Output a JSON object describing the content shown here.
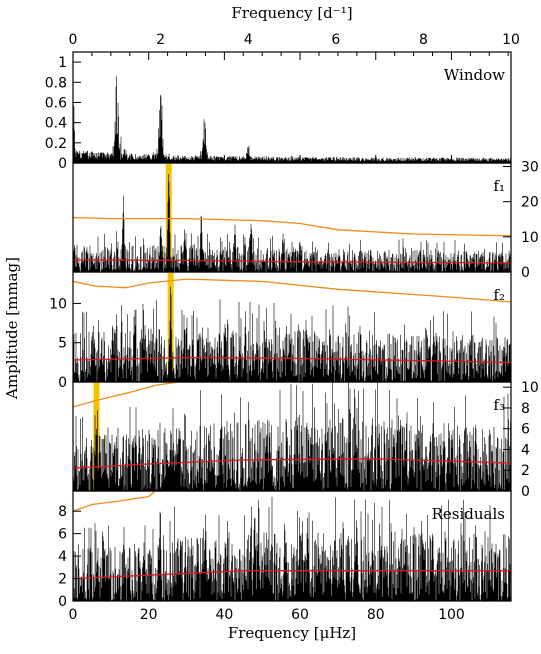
{
  "chart_data": {
    "type": "line",
    "top_axis": {
      "label": "Frequency [d⁻¹]",
      "range": [
        0,
        10
      ],
      "ticks": [
        0,
        2,
        4,
        6,
        8,
        10
      ]
    },
    "bottom_axis": {
      "label": "Frequency [μHz]",
      "range": [
        0,
        115.74
      ],
      "ticks": [
        0,
        20,
        40,
        60,
        80,
        100
      ]
    },
    "ylabel": "Amplitude [mmag]",
    "colors": {
      "data": "#000000",
      "noise": "#e0161e",
      "threshold": "#f08a1c",
      "highlight": "#f5c400"
    },
    "panels": [
      {
        "label": "Window",
        "ylim": [
          0,
          1.1
        ],
        "left_ticks": [
          "0",
          "0.2",
          "0.4",
          "0.6",
          "0.8",
          "1"
        ],
        "left_tick_values": [
          0,
          0.2,
          0.4,
          0.6,
          0.8,
          1.0
        ],
        "peaks": [
          {
            "x": 0.0,
            "y": 0.58
          },
          {
            "x": 1.0,
            "y": 0.86
          },
          {
            "x": 2.0,
            "y": 0.73
          },
          {
            "x": 3.0,
            "y": 0.42
          },
          {
            "x": 4.0,
            "y": 0.22
          },
          {
            "x": 5.0,
            "y": 0.07
          }
        ]
      },
      {
        "label": "f₁",
        "ylim": [
          0,
          31
        ],
        "right_ticks": [
          "0",
          "10",
          "20",
          "30"
        ],
        "right_tick_values": [
          0,
          10,
          20,
          30
        ],
        "highlight_x": 25.3,
        "peaks": [
          {
            "x": 25.3,
            "y": 29.5
          },
          {
            "x": 13.3,
            "y": 23.0
          },
          {
            "x": 33.9,
            "y": 17.5
          },
          {
            "x": 47.1,
            "y": 15.0
          },
          {
            "x": 23.2,
            "y": 15.5
          },
          {
            "x": 29.5,
            "y": 13.0
          },
          {
            "x": 42.8,
            "y": 13.5
          },
          {
            "x": 55.5,
            "y": 11.5
          },
          {
            "x": 60.0,
            "y": 10.0
          }
        ],
        "noise": [
          {
            "x": 0,
            "y": 3.4
          },
          {
            "x": 30,
            "y": 3.3
          },
          {
            "x": 60,
            "y": 2.9
          },
          {
            "x": 115.74,
            "y": 2.6
          }
        ],
        "threshold": [
          {
            "x": 0,
            "y": 15.5
          },
          {
            "x": 10,
            "y": 15.2
          },
          {
            "x": 30,
            "y": 15.2
          },
          {
            "x": 50,
            "y": 14.6
          },
          {
            "x": 60,
            "y": 13.8
          },
          {
            "x": 70,
            "y": 12.0
          },
          {
            "x": 90,
            "y": 10.8
          },
          {
            "x": 115.74,
            "y": 10.3
          }
        ]
      },
      {
        "label": "f₂",
        "ylim": [
          0,
          14
        ],
        "left_ticks": [
          "0",
          "5",
          "10"
        ],
        "left_tick_values": [
          0,
          5,
          10
        ],
        "highlight_x": 25.8,
        "peaks": [
          {
            "x": 25.8,
            "y": 12.3
          },
          {
            "x": 10.5,
            "y": 8.7
          },
          {
            "x": 40.2,
            "y": 8.5
          },
          {
            "x": 19.0,
            "y": 8.0
          },
          {
            "x": 45.5,
            "y": 7.5
          },
          {
            "x": 5.0,
            "y": 7.2
          },
          {
            "x": 33.0,
            "y": 7.0
          },
          {
            "x": 65.0,
            "y": 6.5
          }
        ],
        "noise": [
          {
            "x": 0,
            "y": 2.8
          },
          {
            "x": 30,
            "y": 3.1
          },
          {
            "x": 60,
            "y": 3.0
          },
          {
            "x": 115.74,
            "y": 2.5
          }
        ],
        "threshold": [
          {
            "x": 0,
            "y": 12.8
          },
          {
            "x": 6,
            "y": 12.2
          },
          {
            "x": 14,
            "y": 12.0
          },
          {
            "x": 20,
            "y": 12.6
          },
          {
            "x": 30,
            "y": 13.1
          },
          {
            "x": 50,
            "y": 12.8
          },
          {
            "x": 70,
            "y": 11.8
          },
          {
            "x": 100,
            "y": 10.8
          },
          {
            "x": 115.74,
            "y": 10.2
          }
        ]
      },
      {
        "label": "f₃",
        "ylim": [
          0,
          10.5
        ],
        "right_ticks": [
          "0",
          "2",
          "4",
          "6",
          "8",
          "10"
        ],
        "right_tick_values": [
          0,
          2,
          4,
          6,
          8,
          10
        ],
        "highlight_x": 6.2,
        "peaks": [
          {
            "x": 6.2,
            "y": 7.5
          },
          {
            "x": 17.5,
            "y": 6.2
          },
          {
            "x": 28.0,
            "y": 6.6
          },
          {
            "x": 39.0,
            "y": 6.8
          },
          {
            "x": 52.0,
            "y": 6.0
          },
          {
            "x": 63.0,
            "y": 6.2
          },
          {
            "x": 75.0,
            "y": 5.8
          },
          {
            "x": 88.0,
            "y": 5.7
          },
          {
            "x": 100.0,
            "y": 5.5
          }
        ],
        "noise": [
          {
            "x": 0,
            "y": 2.2
          },
          {
            "x": 20,
            "y": 2.6
          },
          {
            "x": 45,
            "y": 3.0
          },
          {
            "x": 80,
            "y": 3.1
          },
          {
            "x": 115.74,
            "y": 2.7
          }
        ],
        "threshold": [
          {
            "x": 0,
            "y": 8.1
          },
          {
            "x": 7,
            "y": 8.8
          },
          {
            "x": 15,
            "y": 9.5
          },
          {
            "x": 22,
            "y": 10.2
          },
          {
            "x": 30,
            "y": 10.6
          },
          {
            "x": 115.74,
            "y": 10.6
          }
        ]
      },
      {
        "label": "Residuals",
        "ylim": [
          0,
          9.8
        ],
        "left_ticks": [
          "0",
          "2",
          "4",
          "6",
          "8"
        ],
        "left_tick_values": [
          0,
          2,
          4,
          6,
          8
        ],
        "peaks": [
          {
            "x": 8.0,
            "y": 6.2
          },
          {
            "x": 23.0,
            "y": 8.4
          },
          {
            "x": 35.0,
            "y": 7.8
          },
          {
            "x": 48.0,
            "y": 8.6
          },
          {
            "x": 56.0,
            "y": 7.7
          },
          {
            "x": 62.0,
            "y": 7.7
          },
          {
            "x": 75.0,
            "y": 6.8
          },
          {
            "x": 95.0,
            "y": 6.8
          }
        ],
        "noise": [
          {
            "x": 0,
            "y": 2.0
          },
          {
            "x": 20,
            "y": 2.3
          },
          {
            "x": 45,
            "y": 2.7
          },
          {
            "x": 115.74,
            "y": 2.7
          }
        ],
        "threshold": [
          {
            "x": 0,
            "y": 8.0
          },
          {
            "x": 5,
            "y": 8.6
          },
          {
            "x": 12,
            "y": 8.9
          },
          {
            "x": 20,
            "y": 9.3
          },
          {
            "x": 24,
            "y": 10.5
          }
        ]
      }
    ]
  }
}
